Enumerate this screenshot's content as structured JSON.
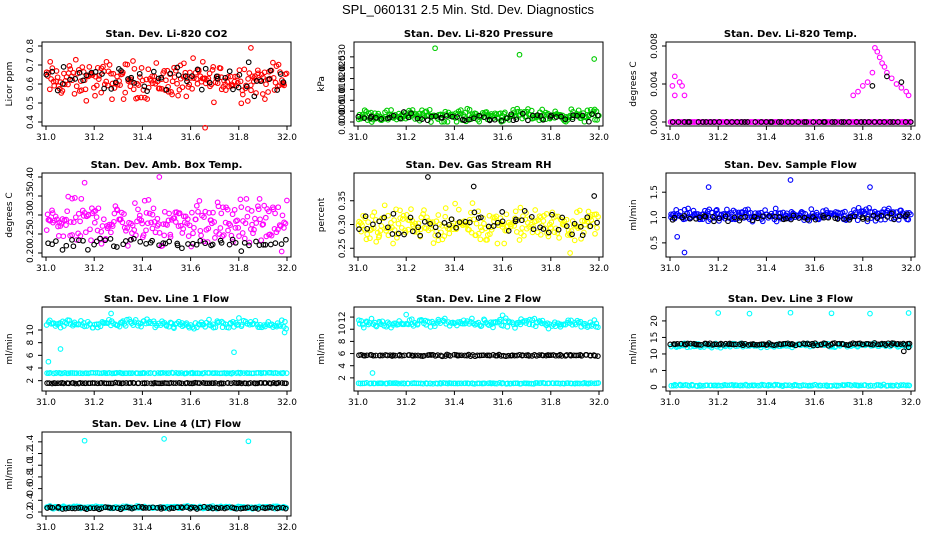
{
  "title": "SPL_060131  2.5 Min. Std. Dev. Diagnostics",
  "colors": {
    "red": "#ff0000",
    "green": "#00cc00",
    "magenta": "#ff00ff",
    "yellow": "#ffff00",
    "blue": "#0000ff",
    "cyan": "#00ffff",
    "black": "#000000"
  },
  "chart_data": [
    {
      "type": "scatter",
      "title": "Stan. Dev. Li-820 CO2",
      "ylabel": "Licor ppm",
      "xlim": [
        31.0,
        32.0
      ],
      "ylim": [
        0.4,
        0.8
      ],
      "xticks": [
        "31.0",
        "31.2",
        "31.4",
        "31.6",
        "31.8",
        "32.0"
      ],
      "yticks": [
        "0.4",
        "0.5",
        "0.6",
        "0.7",
        "0.8"
      ],
      "series": [
        {
          "name": "main",
          "color": "red",
          "band": [
            0.47,
            0.76
          ],
          "center": 0.62,
          "n": 240,
          "outliers": [
            [
              31.66,
              0.37
            ],
            [
              31.85,
              0.79
            ]
          ]
        },
        {
          "name": "secondary",
          "color": "black",
          "band": [
            0.52,
            0.74
          ],
          "center": 0.63,
          "n": 55,
          "outliers": []
        }
      ]
    },
    {
      "type": "scatter",
      "title": "Stan. Dev. Li-820 Pressure",
      "ylabel": "kPa",
      "xlim": [
        31.0,
        32.0
      ],
      "ylim": [
        0.0,
        0.035
      ],
      "xticks": [
        "31.0",
        "31.2",
        "31.4",
        "31.6",
        "31.8",
        "32.0"
      ],
      "yticks": [
        "0.000",
        "0.005",
        "0.010",
        "0.015",
        "0.020",
        "0.025",
        "0.030"
      ],
      "series": [
        {
          "name": "main",
          "color": "green",
          "band": [
            0.0,
            0.008
          ],
          "center": 0.003,
          "n": 240,
          "outliers": [
            [
              31.32,
              0.034
            ],
            [
              31.67,
              0.031
            ],
            [
              31.98,
              0.029
            ]
          ]
        },
        {
          "name": "secondary",
          "color": "black",
          "band": [
            0.0,
            0.006
          ],
          "center": 0.002,
          "n": 55,
          "outliers": []
        }
      ]
    },
    {
      "type": "scatter",
      "title": "Stan. Dev. Li-820 Temp.",
      "ylabel": "degrees C",
      "xlim": [
        31.0,
        32.0
      ],
      "ylim": [
        0.0,
        0.008
      ],
      "xticks": [
        "31.0",
        "31.2",
        "31.4",
        "31.6",
        "31.8",
        "32.0"
      ],
      "yticks": [
        "0.000",
        "0.004",
        "0.008"
      ],
      "series": [
        {
          "name": "main",
          "color": "magenta",
          "band": [
            0.0,
            0.0
          ],
          "center": 0.0,
          "n": 200,
          "outliers": [
            [
              31.01,
              0.0038
            ],
            [
              31.02,
              0.0048
            ],
            [
              31.04,
              0.0042
            ],
            [
              31.05,
              0.0038
            ],
            [
              31.06,
              0.0028
            ],
            [
              31.02,
              0.0028
            ],
            [
              31.76,
              0.0028
            ],
            [
              31.78,
              0.0032
            ],
            [
              31.8,
              0.0038
            ],
            [
              31.82,
              0.0042
            ],
            [
              31.84,
              0.0052
            ],
            [
              31.85,
              0.0078
            ],
            [
              31.86,
              0.0074
            ],
            [
              31.87,
              0.0068
            ],
            [
              31.88,
              0.0062
            ],
            [
              31.89,
              0.0058
            ],
            [
              31.9,
              0.0052
            ],
            [
              31.92,
              0.0046
            ],
            [
              31.94,
              0.004
            ],
            [
              31.96,
              0.0036
            ],
            [
              31.98,
              0.0032
            ],
            [
              31.99,
              0.0028
            ]
          ]
        },
        {
          "name": "secondary",
          "color": "black",
          "band": [
            0.0,
            0.0
          ],
          "center": 0.0,
          "n": 50,
          "outliers": [
            [
              31.84,
              0.0038
            ],
            [
              31.9,
              0.0048
            ],
            [
              31.96,
              0.0042
            ]
          ]
        }
      ]
    },
    {
      "type": "scatter",
      "title": "Stan. Dev. Amb. Box Temp.",
      "ylabel": "degrees C",
      "xlim": [
        31.0,
        32.0
      ],
      "ylim": [
        0.2,
        0.4
      ],
      "xticks": [
        "31.0",
        "31.2",
        "31.4",
        "31.6",
        "31.8",
        "32.0"
      ],
      "yticks": [
        "0.20",
        "0.25",
        "0.30",
        "0.35",
        "0.40"
      ],
      "series": [
        {
          "name": "main",
          "color": "magenta",
          "band": [
            0.2,
            0.37
          ],
          "center": 0.28,
          "n": 240,
          "outliers": [
            [
              31.47,
              0.4
            ],
            [
              31.16,
              0.385
            ]
          ]
        },
        {
          "name": "secondary",
          "color": "black",
          "band": [
            0.205,
            0.26
          ],
          "center": 0.225,
          "n": 55,
          "outliers": []
        }
      ]
    },
    {
      "type": "scatter",
      "title": "Stan. Dev. Gas Stream RH",
      "ylabel": "percent",
      "xlim": [
        31.0,
        32.0
      ],
      "ylim": [
        0.24,
        0.4
      ],
      "xticks": [
        "31.0",
        "31.2",
        "31.4",
        "31.6",
        "31.8",
        "32.0"
      ],
      "yticks": [
        "0.25",
        "0.30",
        "0.35"
      ],
      "series": [
        {
          "name": "main",
          "color": "yellow",
          "band": [
            0.26,
            0.36
          ],
          "center": 0.3,
          "n": 240,
          "outliers": [
            [
              31.88,
              0.24
            ]
          ]
        },
        {
          "name": "secondary",
          "color": "black",
          "band": [
            0.27,
            0.35
          ],
          "center": 0.3,
          "n": 55,
          "outliers": [
            [
              31.29,
              0.4
            ],
            [
              31.48,
              0.38
            ],
            [
              31.98,
              0.36
            ]
          ]
        }
      ]
    },
    {
      "type": "scatter",
      "title": "Stan. Dev. Sample Flow",
      "ylabel": "ml/min",
      "xlim": [
        31.0,
        32.0
      ],
      "ylim": [
        0.3,
        1.8
      ],
      "xticks": [
        "31.0",
        "31.2",
        "31.4",
        "31.6",
        "31.8",
        "32.0"
      ],
      "yticks": [
        "0.5",
        "1.0",
        "1.5"
      ],
      "series": [
        {
          "name": "main",
          "color": "blue",
          "band": [
            0.85,
            1.2
          ],
          "center": 1.05,
          "n": 240,
          "outliers": [
            [
              31.06,
              0.31
            ],
            [
              31.16,
              1.6
            ],
            [
              31.5,
              1.74
            ],
            [
              31.83,
              1.6
            ],
            [
              31.03,
              0.62
            ]
          ]
        },
        {
          "name": "secondary",
          "color": "black",
          "band": [
            0.9,
            1.1
          ],
          "center": 1.0,
          "n": 55,
          "outliers": []
        }
      ]
    },
    {
      "type": "scatter",
      "title": "Stan. Dev. Line 1 Flow",
      "ylabel": "ml/min",
      "xlim": [
        31.0,
        32.0
      ],
      "ylim": [
        1.0,
        13.0
      ],
      "xticks": [
        "31.0",
        "31.2",
        "31.4",
        "31.6",
        "31.8",
        "32.0"
      ],
      "yticks": [
        "2",
        "4",
        "6",
        "8",
        "10"
      ],
      "series": [
        {
          "name": "upper",
          "color": "cyan",
          "band": [
            10.0,
            12.0
          ],
          "center": 11.0,
          "n": 170,
          "outliers": [
            [
              31.01,
              5.0
            ],
            [
              31.06,
              7.0
            ],
            [
              31.27,
              12.6
            ],
            [
              31.78,
              6.5
            ],
            [
              31.99,
              9.6
            ]
          ]
        },
        {
          "name": "middle",
          "color": "cyan",
          "band": [
            3.1,
            3.3
          ],
          "center": 3.2,
          "n": 120,
          "outliers": []
        },
        {
          "name": "lower",
          "color": "black",
          "band": [
            1.5,
            1.7
          ],
          "center": 1.6,
          "n": 110,
          "outliers": []
        }
      ]
    },
    {
      "type": "scatter",
      "title": "Stan. Dev. Line 2 Flow",
      "ylabel": "ml/min",
      "xlim": [
        31.0,
        32.0
      ],
      "ylim": [
        0.5,
        13.0
      ],
      "xticks": [
        "31.0",
        "31.2",
        "31.4",
        "31.6",
        "31.8",
        "32.0"
      ],
      "yticks": [
        "2",
        "4",
        "6",
        "8",
        "10",
        "12"
      ],
      "series": [
        {
          "name": "upper",
          "color": "cyan",
          "band": [
            10.0,
            12.0
          ],
          "center": 11.0,
          "n": 170,
          "outliers": [
            [
              31.06,
              2.8
            ],
            [
              31.2,
              12.4
            ],
            [
              31.6,
              12.3
            ],
            [
              31.56,
              10.3
            ],
            [
              31.84,
              10.4
            ]
          ]
        },
        {
          "name": "middle",
          "color": "black",
          "band": [
            5.5,
            5.9
          ],
          "center": 5.7,
          "n": 110,
          "outliers": []
        },
        {
          "name": "lower",
          "color": "cyan",
          "band": [
            1.0,
            1.2
          ],
          "center": 1.1,
          "n": 120,
          "outliers": []
        }
      ]
    },
    {
      "type": "scatter",
      "title": "Stan. Dev. Line 3 Flow",
      "ylabel": "ml/min",
      "xlim": [
        31.0,
        32.0
      ],
      "ylim": [
        0.0,
        23.0
      ],
      "xticks": [
        "31.0",
        "31.2",
        "31.4",
        "31.6",
        "31.8",
        "32.0"
      ],
      "yticks": [
        "0",
        "5",
        "10",
        "15",
        "20"
      ],
      "series": [
        {
          "name": "upper",
          "color": "cyan",
          "band": [
            11.5,
            13.5
          ],
          "center": 12.6,
          "n": 140,
          "outliers": [
            [
              31.2,
              22.4
            ],
            [
              31.33,
              22.2
            ],
            [
              31.5,
              22.5
            ],
            [
              31.67,
              22.3
            ],
            [
              31.83,
              22.2
            ],
            [
              31.99,
              22.4
            ]
          ]
        },
        {
          "name": "middle",
          "color": "black",
          "band": [
            12.5,
            13.6
          ],
          "center": 13.0,
          "n": 110,
          "outliers": [
            [
              31.97,
              10.8
            ],
            [
              31.99,
              12.0
            ]
          ]
        },
        {
          "name": "lower",
          "color": "cyan",
          "band": [
            0.2,
            0.8
          ],
          "center": 0.5,
          "n": 120,
          "outliers": []
        }
      ]
    },
    {
      "type": "scatter",
      "title": "Stan. Dev. Line 4 (LT) Flow",
      "ylabel": "ml/min",
      "xlim": [
        31.0,
        32.0
      ],
      "ylim": [
        0.2,
        1.5
      ],
      "xticks": [
        "31.0",
        "31.2",
        "31.4",
        "31.6",
        "31.8",
        "32.0"
      ],
      "yticks": [
        "0.2",
        "0.4",
        "0.6",
        "0.8",
        "1.0",
        "1.2",
        "1.4"
      ],
      "series": [
        {
          "name": "main",
          "color": "cyan",
          "band": [
            0.25,
            0.32
          ],
          "center": 0.28,
          "n": 200,
          "outliers": [
            [
              31.16,
              1.42
            ],
            [
              31.49,
              1.45
            ],
            [
              31.84,
              1.41
            ]
          ]
        },
        {
          "name": "secondary",
          "color": "black",
          "band": [
            0.24,
            0.3
          ],
          "center": 0.27,
          "n": 80,
          "outliers": []
        }
      ]
    }
  ]
}
